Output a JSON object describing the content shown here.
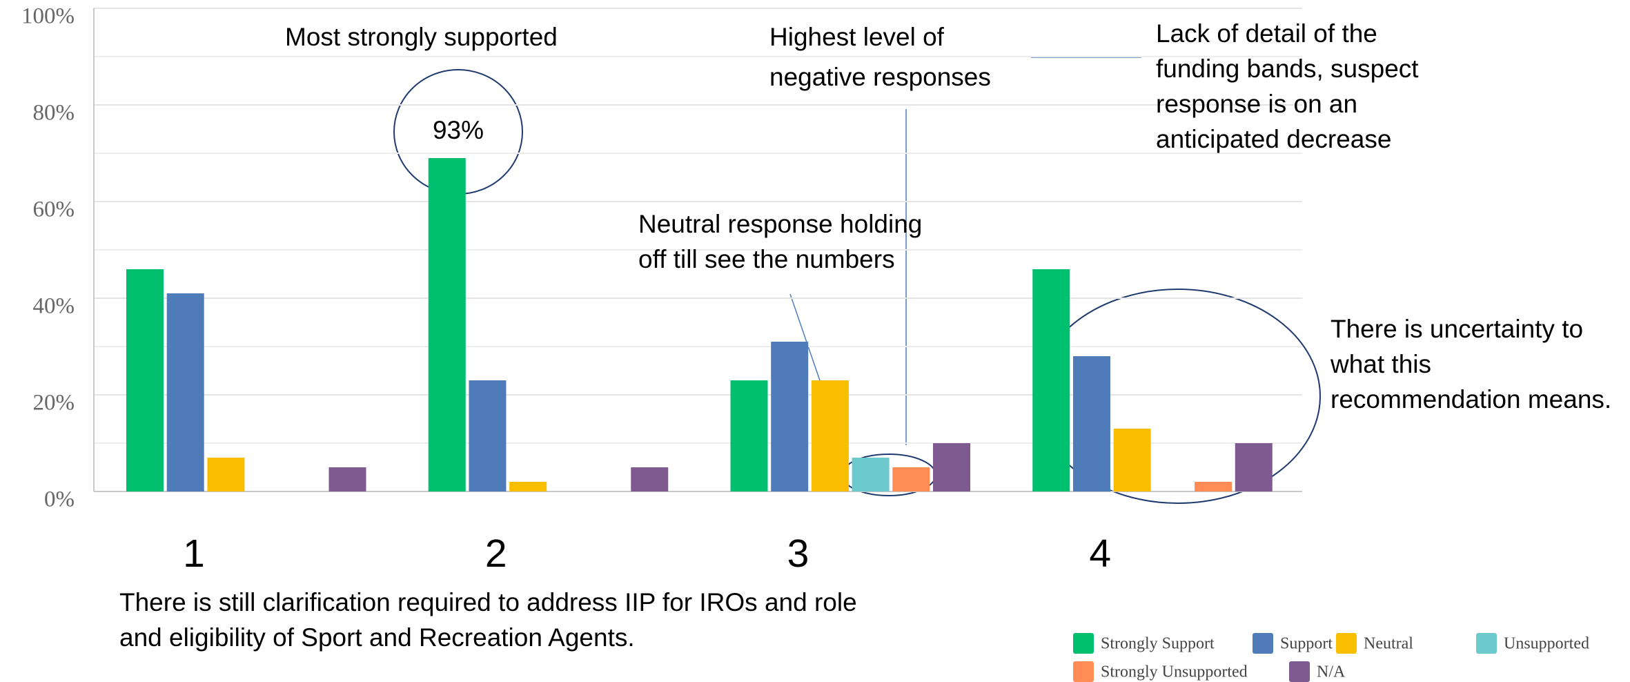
{
  "chart_data": {
    "type": "bar",
    "categories": [
      "1",
      "2",
      "3",
      "4"
    ],
    "series": [
      {
        "name": "Strongly Support",
        "color": "#00bf6f",
        "values": [
          46,
          69,
          23,
          46
        ]
      },
      {
        "name": "Support",
        "color": "#4f7cb9",
        "values": [
          41,
          23,
          31,
          28
        ]
      },
      {
        "name": "Neutral",
        "color": "#f9be00",
        "values": [
          7,
          2,
          23,
          13
        ]
      },
      {
        "name": "Unsupported",
        "color": "#6cc9cc",
        "values": [
          0,
          0,
          7,
          0
        ]
      },
      {
        "name": "Strongly Unsupported",
        "color": "#ff8c55",
        "values": [
          0,
          0,
          5,
          2
        ]
      },
      {
        "name": "N/A",
        "color": "#7e5a91",
        "values": [
          5,
          5,
          10,
          10
        ]
      }
    ],
    "ylim": [
      0,
      100
    ],
    "yticks": [
      {
        "value": 0,
        "label": "0%"
      },
      {
        "value": 20,
        "label": "20%"
      },
      {
        "value": 40,
        "label": "40%"
      },
      {
        "value": 60,
        "label": "60%"
      },
      {
        "value": 80,
        "label": "80%"
      },
      {
        "value": 100,
        "label": "100%"
      }
    ],
    "minor_yticks": [
      10,
      30,
      50,
      70,
      90
    ],
    "grid": true,
    "legend": "bottom-right",
    "annotations": [
      {
        "lines": [
          "Most strongly supported"
        ]
      },
      {
        "lines": [
          "93%"
        ]
      },
      {
        "lines": [
          "Highest level of",
          "negative responses"
        ]
      },
      {
        "lines": [
          "Neutral response holding",
          "off till see the numbers"
        ]
      },
      {
        "lines": [
          "Lack of detail of the",
          "funding bands, suspect",
          "response is on an",
          "anticipated decrease"
        ]
      },
      {
        "lines": [
          "There is uncertainty to",
          "what this",
          "recommendation means."
        ]
      }
    ],
    "footnote": {
      "lines": [
        "There is still clarification required to address IIP for IROs and role",
        "and eligibility of Sport and Recreation Agents."
      ]
    }
  }
}
